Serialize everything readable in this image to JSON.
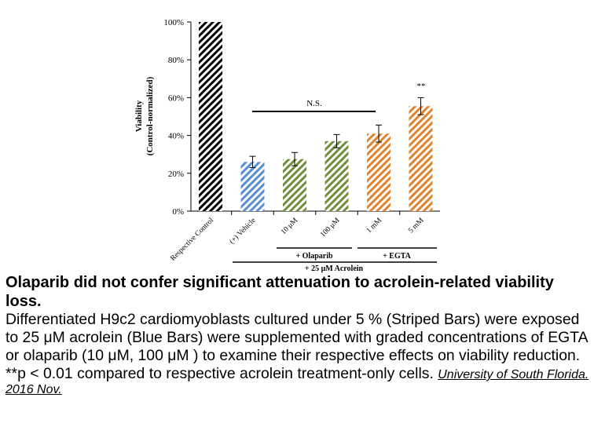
{
  "chart_data": {
    "type": "bar",
    "ylabel": "Viability",
    "ylabel_sub": "(Control-normalized)",
    "ylim": [
      0,
      100
    ],
    "yticks": [
      0,
      20,
      40,
      60,
      80,
      100
    ],
    "ytick_labels": [
      "0%",
      "20%",
      "40%",
      "60%",
      "80%",
      "100%"
    ],
    "grid": false,
    "categories": [
      "Respective Control",
      "(+) Vehicle",
      "10 μM",
      "100 μM",
      "1 mM",
      "5 mM"
    ],
    "values": [
      100,
      26,
      27.5,
      37,
      41,
      55.5
    ],
    "errors": [
      0,
      3,
      3.5,
      3.5,
      4.5,
      4.5
    ],
    "bar_colors": [
      "#000000",
      "#5b8ed0",
      "#6f8f3a",
      "#6f8f3a",
      "#e0822e",
      "#e0822e"
    ],
    "annotations": {
      "ns_label": "N.S.",
      "sig_label": "**"
    },
    "groups": {
      "olaparib": "+ Olaparib",
      "egta": "+ EGTA",
      "acrolein": "+ 25 μM Acrolein"
    }
  },
  "caption": {
    "title": "Olaparib did not confer significant attenuation to acrolein-related viability loss.",
    "body": "Differentiated H9c2 cardiomyoblasts cultured under 5 % (Striped Bars) were exposed to 25 μM acrolein (Blue Bars) were supplemented with graded concentrations of EGTA or olaparib (10 μM, 100 μM ) to examine their respective effects on viability reduction. **p < 0.01 compared to respective acrolein treatment-only cells. ",
    "source": "University of South Florida. 2016 Nov."
  }
}
